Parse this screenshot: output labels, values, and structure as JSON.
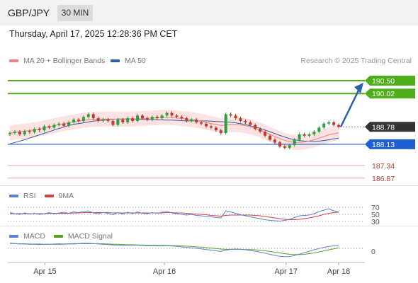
{
  "header": {
    "symbol": "GBP/JPY",
    "timeframe": "30 MIN",
    "timestamp": "Thursday, April 17, 2025 12:28:36 PM CET"
  },
  "legend": {
    "ma20_label": "MA 20 + Bollinger Bands",
    "ma50_label": "MA 50",
    "credit": "Research © 2025 Trading Central"
  },
  "rsi_legend": {
    "rsi_label": "RSI",
    "ma_label": "9MA"
  },
  "macd_legend": {
    "macd_label": "MACD",
    "signal_label": "MACD Signal"
  },
  "colors": {
    "ma20": "#f08080",
    "ma50": "#2c5f9e",
    "band": "#fde2e2",
    "bull": "#2e9e3e",
    "bear": "#c0392b",
    "resistance": "#4caf1a",
    "support_blue": "#1f5fd0",
    "support_red": "#f2a0a0",
    "arrow": "#2a5fb0",
    "rsi": "#5b7fd9",
    "rsi_ma": "#d64040",
    "macd": "#5b7fd9",
    "macd_signal": "#5aa020"
  },
  "chart_data": [
    {
      "type": "candlestick",
      "title": "GBP/JPY",
      "ylim": [
        186.6,
        191.0
      ],
      "levels": [
        {
          "value": 190.5,
          "label": "190.50",
          "kind": "resistance"
        },
        {
          "value": 190.02,
          "label": "190.02",
          "kind": "resistance"
        },
        {
          "value": 188.78,
          "label": "188.78",
          "kind": "last_price"
        },
        {
          "value": 188.13,
          "label": "188.13",
          "kind": "support_blue"
        },
        {
          "value": 187.34,
          "label": "187.34",
          "kind": "support_red"
        },
        {
          "value": 186.87,
          "label": "186.87",
          "kind": "support_red"
        }
      ],
      "series_close": [
        188.55,
        188.6,
        188.5,
        188.62,
        188.58,
        188.7,
        188.65,
        188.8,
        188.75,
        188.85,
        188.9,
        188.82,
        188.95,
        189.05,
        189.0,
        189.15,
        189.25,
        189.1,
        189.0,
        189.05,
        189.0,
        188.85,
        189.05,
        188.95,
        189.1,
        189.0,
        189.2,
        189.1,
        189.05,
        189.15,
        189.1,
        189.2,
        189.3,
        189.2,
        189.15,
        189.1,
        189.0,
        189.05,
        188.95,
        188.9,
        188.8,
        188.75,
        188.65,
        188.55,
        189.25,
        189.2,
        189.1,
        189.0,
        188.95,
        188.85,
        188.7,
        188.6,
        188.45,
        188.3,
        188.2,
        188.05,
        188.0,
        188.1,
        188.3,
        188.5,
        188.45,
        188.5,
        188.6,
        188.75,
        188.9,
        188.95,
        188.85,
        188.78
      ],
      "ma20": [
        188.55,
        188.58,
        188.6,
        188.62,
        188.64,
        188.67,
        188.7,
        188.74,
        188.78,
        188.82,
        188.86,
        188.9,
        188.93,
        188.96,
        188.99,
        189.02,
        189.05,
        189.06,
        189.06,
        189.07,
        189.07,
        189.07,
        189.06,
        189.06,
        189.06,
        189.07,
        189.08,
        189.09,
        189.1,
        189.11,
        189.12,
        189.13,
        189.13,
        189.12,
        189.11,
        189.09,
        189.07,
        189.05,
        189.02,
        188.99,
        188.95,
        188.9,
        188.87,
        188.83,
        188.85,
        188.86,
        188.86,
        188.85,
        188.82,
        188.78,
        188.72,
        188.66,
        188.58,
        188.5,
        188.42,
        188.34,
        188.28,
        188.22,
        188.2,
        188.2,
        188.22,
        188.25,
        188.3,
        188.36,
        188.42,
        188.48,
        188.52,
        188.56
      ],
      "ma50": [
        188.15,
        188.2,
        188.25,
        188.3,
        188.36,
        188.42,
        188.48,
        188.54,
        188.6,
        188.66,
        188.72,
        188.78,
        188.83,
        188.87,
        188.9,
        188.93,
        188.96,
        188.99,
        189.01,
        189.03,
        189.05,
        189.06,
        189.07,
        189.07,
        189.07,
        189.07,
        189.06,
        189.06,
        189.05,
        189.05,
        189.04,
        189.04,
        189.03,
        189.03,
        189.02,
        189.01,
        189.0,
        189.0,
        189.0,
        189.0,
        189.0,
        188.99,
        188.98,
        188.97,
        188.96,
        188.95,
        188.93,
        188.9,
        188.86,
        188.82,
        188.77,
        188.72,
        188.66,
        188.6,
        188.53,
        188.46,
        188.4,
        188.34,
        188.3,
        188.27,
        188.25,
        188.24,
        188.24,
        188.25,
        188.27,
        188.3,
        188.33,
        188.36
      ]
    },
    {
      "type": "line",
      "title": "RSI",
      "ylim": [
        20,
        80
      ],
      "ticks": [
        "70",
        "50",
        "30"
      ],
      "rsi": [
        55,
        52,
        50,
        54,
        51,
        53,
        50,
        52,
        55,
        52,
        54,
        56,
        53,
        57,
        55,
        58,
        60,
        54,
        52,
        55,
        53,
        49,
        55,
        51,
        56,
        52,
        57,
        53,
        52,
        55,
        53,
        56,
        58,
        54,
        52,
        50,
        48,
        50,
        47,
        46,
        44,
        43,
        41,
        40,
        60,
        57,
        53,
        49,
        46,
        43,
        40,
        38,
        35,
        33,
        32,
        31,
        33,
        36,
        41,
        46,
        47,
        48,
        52,
        58,
        62,
        66,
        60,
        57
      ],
      "rsi_ma": [
        52,
        52,
        52,
        52,
        52,
        52,
        52,
        52,
        53,
        53,
        53,
        53,
        53,
        54,
        54,
        55,
        55,
        55,
        55,
        55,
        55,
        54,
        54,
        54,
        54,
        54,
        54,
        54,
        54,
        54,
        54,
        54,
        55,
        55,
        54,
        54,
        53,
        52,
        51,
        50,
        49,
        47,
        46,
        45,
        47,
        48,
        48,
        48,
        48,
        48,
        47,
        46,
        44,
        42,
        40,
        38,
        36,
        35,
        35,
        36,
        38,
        40,
        43,
        46,
        50,
        53,
        55,
        56
      ]
    },
    {
      "type": "line",
      "title": "MACD",
      "ticks": [
        "0"
      ],
      "macd": [
        0.22,
        0.2,
        0.18,
        0.18,
        0.17,
        0.17,
        0.16,
        0.17,
        0.17,
        0.18,
        0.19,
        0.18,
        0.19,
        0.2,
        0.2,
        0.21,
        0.21,
        0.2,
        0.18,
        0.17,
        0.16,
        0.14,
        0.14,
        0.13,
        0.13,
        0.13,
        0.13,
        0.12,
        0.11,
        0.11,
        0.1,
        0.1,
        0.11,
        0.1,
        0.08,
        0.06,
        0.04,
        0.02,
        0.0,
        -0.02,
        -0.05,
        -0.07,
        -0.1,
        -0.13,
        -0.08,
        -0.04,
        -0.03,
        -0.04,
        -0.06,
        -0.09,
        -0.12,
        -0.16,
        -0.2,
        -0.25,
        -0.29,
        -0.33,
        -0.35,
        -0.34,
        -0.3,
        -0.24,
        -0.18,
        -0.12,
        -0.06,
        -0.01,
        0.04,
        0.08,
        0.1,
        0.11
      ],
      "signal": [
        0.2,
        0.2,
        0.19,
        0.19,
        0.18,
        0.18,
        0.18,
        0.17,
        0.17,
        0.17,
        0.17,
        0.17,
        0.18,
        0.18,
        0.19,
        0.19,
        0.19,
        0.19,
        0.19,
        0.19,
        0.18,
        0.17,
        0.17,
        0.16,
        0.15,
        0.15,
        0.14,
        0.14,
        0.13,
        0.13,
        0.12,
        0.12,
        0.12,
        0.11,
        0.11,
        0.1,
        0.09,
        0.08,
        0.06,
        0.05,
        0.03,
        0.01,
        -0.01,
        -0.03,
        -0.04,
        -0.04,
        -0.04,
        -0.04,
        -0.05,
        -0.05,
        -0.06,
        -0.08,
        -0.1,
        -0.13,
        -0.16,
        -0.19,
        -0.22,
        -0.25,
        -0.26,
        -0.26,
        -0.25,
        -0.22,
        -0.19,
        -0.15,
        -0.11,
        -0.06,
        -0.02,
        0.02
      ]
    }
  ],
  "x_axis": {
    "labels": [
      "Apr 15",
      "Apr 16",
      "Apr 17",
      "Apr 18"
    ]
  }
}
